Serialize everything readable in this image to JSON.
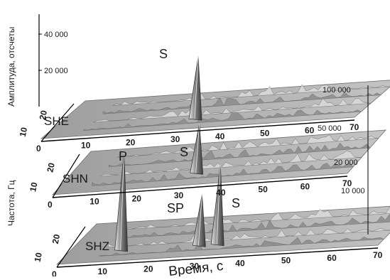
{
  "chart_data": {
    "type": "area",
    "title": "",
    "xlabel": "Время, с",
    "ylabel": "Амплитуда, отсчеты",
    "zlabel": "Частота, Гц",
    "x_ticks": [
      "0",
      "10",
      "20",
      "30",
      "40",
      "50",
      "60",
      "70"
    ],
    "freq_ticks": [
      "10",
      "20"
    ],
    "xlim": [
      0,
      70
    ],
    "panels": [
      {
        "channel": "SHE",
        "amplitude_ticks": [
          "20 000",
          "40 000"
        ],
        "right_ticks": [
          "100 000"
        ],
        "peaks": [
          {
            "label": "S",
            "time": 31,
            "amplitude": 42000
          }
        ]
      },
      {
        "channel": "SHN",
        "amplitude_ticks": [],
        "right_ticks": [
          "50 000",
          "20 000"
        ],
        "peaks": [
          {
            "label": "S",
            "time": 31,
            "amplitude": 44000
          }
        ]
      },
      {
        "channel": "SHZ",
        "amplitude_ticks": [],
        "right_ticks": [
          "10 000"
        ],
        "peaks": [
          {
            "label": "P",
            "time": 11,
            "amplitude": 10000
          },
          {
            "label": "SP",
            "time": 28,
            "amplitude": 5000
          },
          {
            "label": "S",
            "time": 32,
            "amplitude": 8000
          }
        ]
      }
    ]
  }
}
